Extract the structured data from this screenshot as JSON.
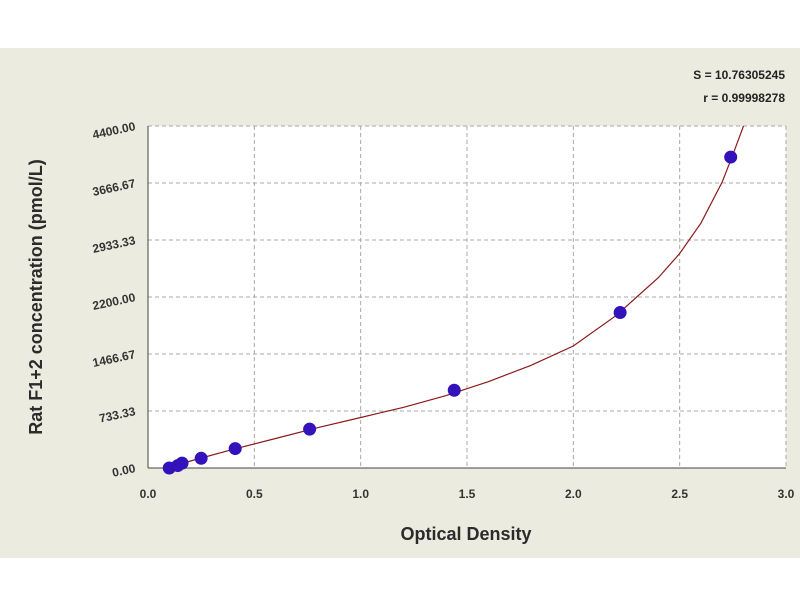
{
  "colors": {
    "page_background": "#ffffff",
    "panel_background": "#ecebe0",
    "plot_background": "#ffffff",
    "grid": "#a8a8a8",
    "curve": "#8b1a1a",
    "point": "#3311bb"
  },
  "stats": {
    "s": "S = 10.76305245",
    "r": "r = 0.99998278"
  },
  "chart_data": {
    "type": "scatter",
    "title": "",
    "xlabel": "Optical Density",
    "ylabel": "Rat F1+2 concentration (pmol/L)",
    "xlim": [
      0,
      3
    ],
    "ylim": [
      0,
      4400
    ],
    "grid": true,
    "x_tick_labels": [
      "0.0",
      "0.5",
      "1.0",
      "1.5",
      "2.0",
      "2.5",
      "3.0"
    ],
    "x_tick_values": [
      0,
      0.5,
      1.0,
      1.5,
      2.0,
      2.5,
      3.0
    ],
    "y_tick_labels": [
      "0.00",
      "733.33",
      "1466.67",
      "2200.00",
      "2933.33",
      "3666.67",
      "4400.00"
    ],
    "y_tick_values": [
      0,
      733.33,
      1466.67,
      2200.0,
      2933.33,
      3666.67,
      4400.0
    ],
    "points": {
      "x": [
        0.1,
        0.14,
        0.16,
        0.25,
        0.41,
        0.76,
        1.44,
        2.22,
        2.74
      ],
      "y": [
        0,
        31,
        63,
        125,
        250,
        500,
        1000,
        2000,
        4000
      ]
    },
    "fit_curve": {
      "x": [
        0.08,
        0.2,
        0.4,
        0.6,
        0.8,
        1.0,
        1.2,
        1.4,
        1.6,
        1.8,
        2.0,
        2.2,
        2.4,
        2.5,
        2.6,
        2.7,
        2.75,
        2.8
      ],
      "y": [
        0,
        90,
        240,
        380,
        520,
        650,
        780,
        930,
        1110,
        1320,
        1570,
        1960,
        2450,
        2760,
        3150,
        3680,
        4030,
        4400
      ]
    }
  }
}
